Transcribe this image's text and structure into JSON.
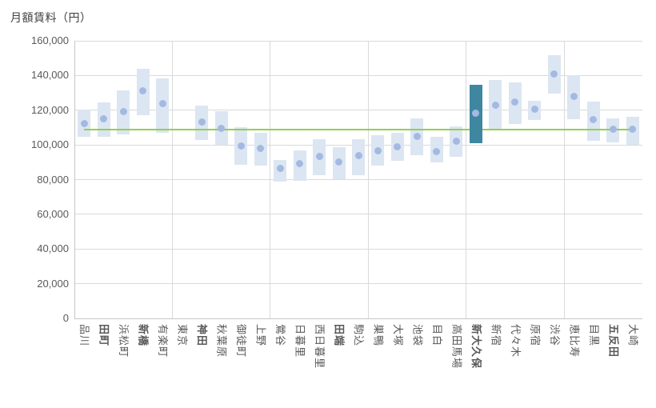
{
  "title": "月額賃料（円）",
  "colors": {
    "bar": "#DCE6F2",
    "highlight_bar": "#3F87A0",
    "dot": "#A4B9E2",
    "average_line": "#92D050",
    "gridline": "#DADADA",
    "axis_line": "#C6C6C6",
    "tick_label": "#595959",
    "title_text": "#3F3F3F"
  },
  "chart_data": {
    "type": "bar",
    "subtype": "floating-range-bars-with-mean-dots",
    "title": "月額賃料（円）",
    "xlabel": "",
    "ylabel": "月額賃料（円）",
    "ylim": [
      0,
      160000
    ],
    "ytick_step": 20000,
    "ytick_labels": [
      "0",
      "20,000",
      "40,000",
      "60,000",
      "80,000",
      "100,000",
      "120,000",
      "140,000",
      "160,000"
    ],
    "grid": true,
    "x_gridline_every_n_categories": 5,
    "legend": "none",
    "average_line": {
      "value": 109000
    },
    "highlighted_category": "新大久保",
    "categories": [
      "品川",
      "田町",
      "浜松町",
      "新橋",
      "有楽町",
      "東京",
      "神田",
      "秋葉原",
      "御徒町",
      "上野",
      "鶯谷",
      "日暮里",
      "西日暮里",
      "田端",
      "駒込",
      "巣鴨",
      "大塚",
      "池袋",
      "目白",
      "高田馬場",
      "新大久保",
      "新宿",
      "代々木",
      "原宿",
      "渋谷",
      "恵比寿",
      "目黒",
      "五反田",
      "大崎"
    ],
    "stations": [
      {
        "label": "品川",
        "low": 104500,
        "high": 120500,
        "mean": 112500,
        "bold": false,
        "highlighted": false
      },
      {
        "label": "田町",
        "low": 104500,
        "high": 124500,
        "mean": 115000,
        "bold": true,
        "highlighted": false
      },
      {
        "label": "浜松町",
        "low": 106000,
        "high": 131500,
        "mean": 119000,
        "bold": false,
        "highlighted": false
      },
      {
        "label": "新橋",
        "low": 117000,
        "high": 144000,
        "mean": 131000,
        "bold": true,
        "highlighted": false
      },
      {
        "label": "有楽町",
        "low": 107000,
        "high": 138500,
        "mean": 124000,
        "bold": false,
        "highlighted": false
      },
      {
        "label": "東京",
        "low": null,
        "high": null,
        "mean": null,
        "bold": false,
        "highlighted": false
      },
      {
        "label": "神田",
        "low": 103000,
        "high": 122500,
        "mean": 113000,
        "bold": true,
        "highlighted": false
      },
      {
        "label": "秋葉原",
        "low": 100000,
        "high": 119500,
        "mean": 109500,
        "bold": false,
        "highlighted": false
      },
      {
        "label": "御徒町",
        "low": 88500,
        "high": 110000,
        "mean": 99500,
        "bold": false,
        "highlighted": false
      },
      {
        "label": "上野",
        "low": 88000,
        "high": 107000,
        "mean": 98000,
        "bold": false,
        "highlighted": false
      },
      {
        "label": "鶯谷",
        "low": 79000,
        "high": 91500,
        "mean": 86500,
        "bold": false,
        "highlighted": false
      },
      {
        "label": "日暮里",
        "low": 79500,
        "high": 97000,
        "mean": 89000,
        "bold": false,
        "highlighted": false
      },
      {
        "label": "西日暮里",
        "low": 82500,
        "high": 103500,
        "mean": 93500,
        "bold": false,
        "highlighted": false
      },
      {
        "label": "田端",
        "low": 80000,
        "high": 98500,
        "mean": 90000,
        "bold": true,
        "highlighted": false
      },
      {
        "label": "駒込",
        "low": 82500,
        "high": 103500,
        "mean": 94000,
        "bold": false,
        "highlighted": false
      },
      {
        "label": "巣鴨",
        "low": 88000,
        "high": 105500,
        "mean": 96500,
        "bold": false,
        "highlighted": false
      },
      {
        "label": "大塚",
        "low": 91000,
        "high": 107000,
        "mean": 99000,
        "bold": false,
        "highlighted": false
      },
      {
        "label": "池袋",
        "low": 94000,
        "high": 115500,
        "mean": 105000,
        "bold": false,
        "highlighted": false
      },
      {
        "label": "目白",
        "low": 90000,
        "high": 104500,
        "mean": 96000,
        "bold": false,
        "highlighted": false
      },
      {
        "label": "高田馬場",
        "low": 93000,
        "high": 110500,
        "mean": 102000,
        "bold": false,
        "highlighted": false
      },
      {
        "label": "新大久保",
        "low": 101000,
        "high": 134500,
        "mean": 118500,
        "bold": true,
        "highlighted": true
      },
      {
        "label": "新宿",
        "low": 109000,
        "high": 137500,
        "mean": 123000,
        "bold": false,
        "highlighted": false
      },
      {
        "label": "代々木",
        "low": 112000,
        "high": 136000,
        "mean": 124500,
        "bold": false,
        "highlighted": false
      },
      {
        "label": "原宿",
        "low": 114500,
        "high": 125500,
        "mean": 120500,
        "bold": false,
        "highlighted": false
      },
      {
        "label": "渋谷",
        "low": 129500,
        "high": 151500,
        "mean": 141000,
        "bold": false,
        "highlighted": false
      },
      {
        "label": "恵比寿",
        "low": 115000,
        "high": 140000,
        "mean": 128000,
        "bold": false,
        "highlighted": false
      },
      {
        "label": "目黒",
        "low": 102500,
        "high": 125000,
        "mean": 114500,
        "bold": false,
        "highlighted": false
      },
      {
        "label": "五反田",
        "low": 101500,
        "high": 115500,
        "mean": 109000,
        "bold": true,
        "highlighted": false
      },
      {
        "label": "大崎",
        "low": 100000,
        "high": 116000,
        "mean": 109000,
        "bold": false,
        "highlighted": false
      }
    ]
  }
}
